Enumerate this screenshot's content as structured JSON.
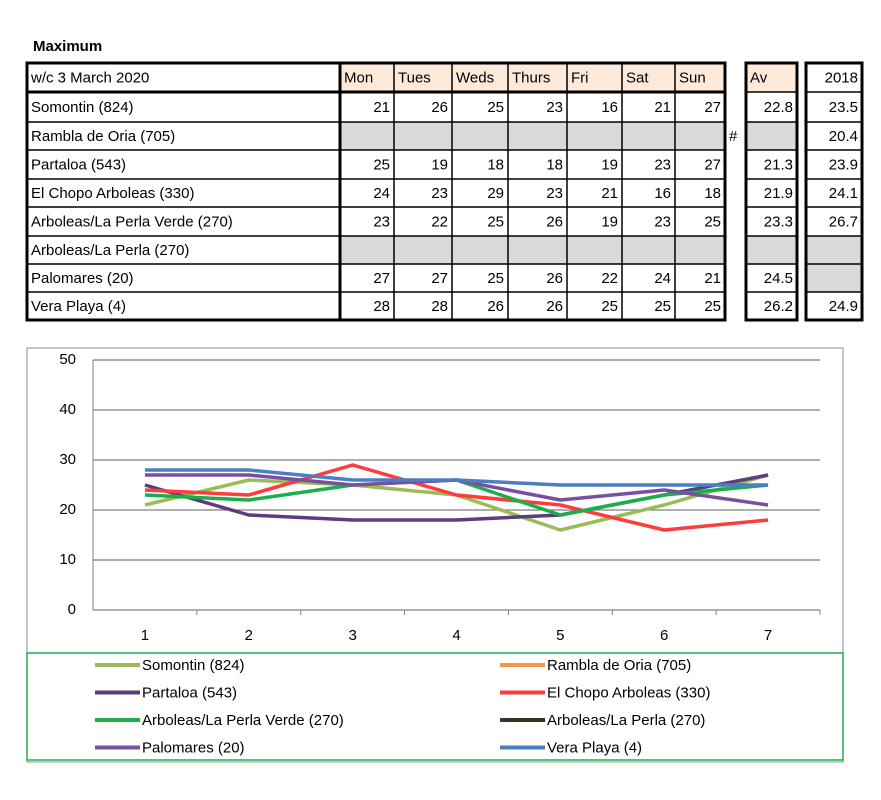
{
  "title": "Maximum",
  "table": {
    "header": [
      "w/c  3 March 2020",
      "Mon",
      "Tues",
      "Weds",
      "Thurs",
      "Fri",
      "Sat",
      "Sun"
    ],
    "av_header": "Av",
    "year_header": "2018",
    "rows": [
      {
        "name": "Somontin (824)",
        "values": [
          21,
          26,
          25,
          23,
          16,
          21,
          27
        ],
        "av": 22.8,
        "y2018": 23.5
      },
      {
        "name": "Rambla de Oria (705)",
        "values": [
          null,
          null,
          null,
          null,
          null,
          null,
          null
        ],
        "flag": "#",
        "av": null,
        "y2018": 20.4
      },
      {
        "name": "Partaloa (543)",
        "values": [
          25,
          19,
          18,
          18,
          19,
          23,
          27
        ],
        "av": 21.3,
        "y2018": 23.9
      },
      {
        "name": "El Chopo  Arboleas (330)",
        "values": [
          24,
          23,
          29,
          23,
          21,
          16,
          18
        ],
        "av": 21.9,
        "y2018": 24.1
      },
      {
        "name": "Arboleas/La Perla Verde (270)",
        "values": [
          23,
          22,
          25,
          26,
          19,
          23,
          25
        ],
        "av": 23.3,
        "y2018": 26.7
      },
      {
        "name": "Arboleas/La Perla (270)",
        "values": [
          null,
          null,
          null,
          null,
          null,
          null,
          null
        ],
        "av": null,
        "y2018": null
      },
      {
        "name": "Palomares (20)",
        "values": [
          27,
          27,
          25,
          26,
          22,
          24,
          21
        ],
        "av": 24.5,
        "y2018": null
      },
      {
        "name": "Vera Playa (4)",
        "values": [
          28,
          28,
          26,
          26,
          25,
          25,
          25
        ],
        "av": 26.2,
        "y2018": 24.9
      }
    ]
  },
  "chart_data": {
    "type": "line",
    "categories": [
      1,
      2,
      3,
      4,
      5,
      6,
      7
    ],
    "ylim": [
      0,
      50
    ],
    "yticks": [
      0,
      10,
      20,
      30,
      40,
      50
    ],
    "grid": true,
    "series": [
      {
        "name": "Somontin (824)",
        "color": "#9bbb59",
        "values": [
          21,
          26,
          25,
          23,
          16,
          21,
          27
        ]
      },
      {
        "name": "Rambla de Oria (705)",
        "color": "#f79646",
        "values": [
          null,
          null,
          null,
          null,
          null,
          null,
          null
        ]
      },
      {
        "name": "Partaloa (543)",
        "color": "#5c3d7e",
        "values": [
          25,
          19,
          18,
          18,
          19,
          23,
          27
        ]
      },
      {
        "name": "El Chopo  Arboleas (330)",
        "color": "#ff3b3b",
        "values": [
          24,
          23,
          29,
          23,
          21,
          16,
          18
        ]
      },
      {
        "name": "Arboleas/La Perla Verde (270)",
        "color": "#1aaf4b",
        "values": [
          23,
          22,
          25,
          26,
          19,
          23,
          25
        ]
      },
      {
        "name": "Arboleas/La Perla (270)",
        "color": "#3d3320",
        "values": [
          null,
          null,
          null,
          null,
          null,
          null,
          null
        ]
      },
      {
        "name": "Palomares (20)",
        "color": "#7a4fa0",
        "values": [
          27,
          27,
          25,
          26,
          22,
          24,
          21
        ]
      },
      {
        "name": "Vera Playa (4)",
        "color": "#4a7fc1",
        "values": [
          28,
          28,
          26,
          26,
          25,
          25,
          25
        ]
      }
    ]
  }
}
